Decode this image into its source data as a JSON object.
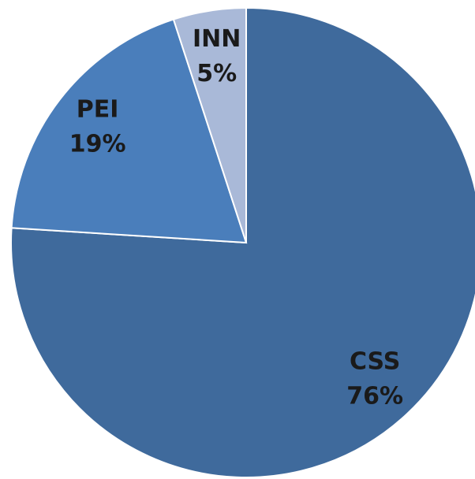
{
  "chart_data": {
    "type": "pie",
    "categories": [
      "CSS",
      "PEI",
      "INN"
    ],
    "values": [
      76,
      19,
      5
    ],
    "value_labels": [
      "76%",
      "19%",
      "5%"
    ],
    "colors": [
      "#3f6a9c",
      "#4a7ebb",
      "#a9b9d8"
    ]
  }
}
